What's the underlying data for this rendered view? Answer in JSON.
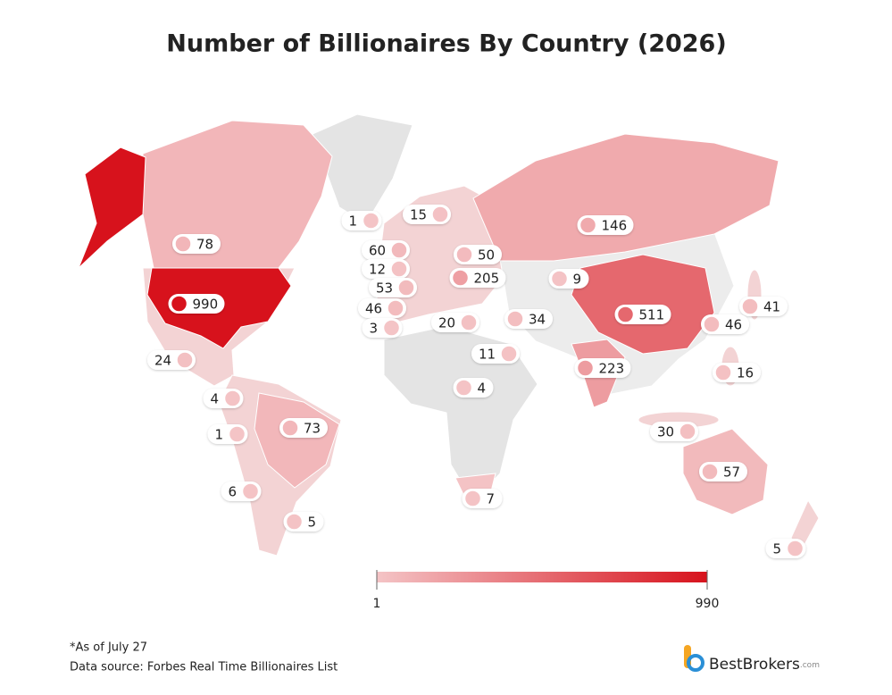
{
  "title": "Number of Billionaires By Country (2026)",
  "chart_data": {
    "type": "choropleth",
    "values": [
      1,
      15,
      146,
      78,
      60,
      50,
      12,
      205,
      9,
      53,
      46,
      990,
      3,
      20,
      34,
      511,
      41,
      46,
      24,
      11,
      223,
      16,
      4,
      4,
      73,
      1,
      30,
      57,
      6,
      7,
      5,
      5
    ],
    "colorbar": {
      "lim": [
        1,
        990
      ],
      "ticks": [
        1,
        990
      ],
      "colors": [
        "#f4c4c6",
        "#d7121c"
      ]
    }
  },
  "footnote": "*As of July 27",
  "source": "Data source: Forbes Real Time Billionaires List",
  "logo": {
    "name": "BestBrokers",
    "suffix": ".com"
  }
}
